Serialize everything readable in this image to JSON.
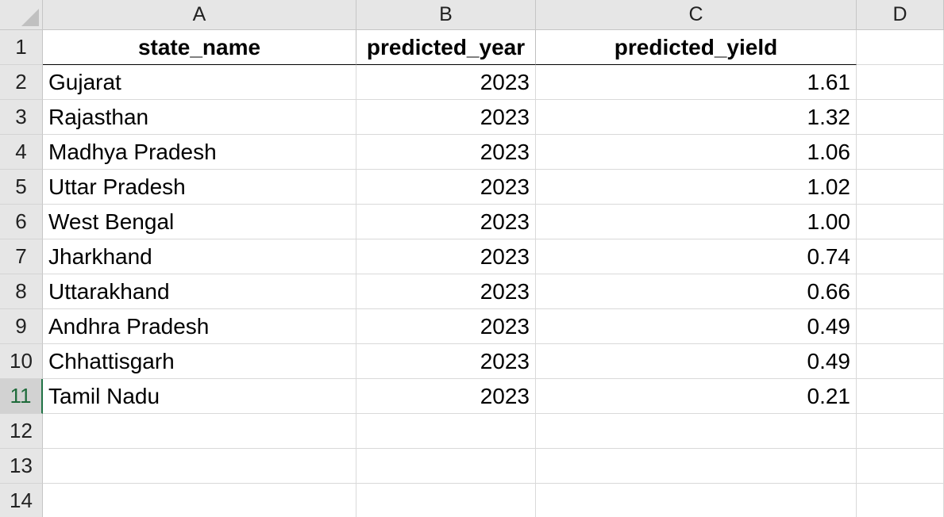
{
  "columns": [
    "A",
    "B",
    "C",
    "D"
  ],
  "header_row": {
    "row_number": "1",
    "cells": [
      "state_name",
      "predicted_year",
      "predicted_yield",
      ""
    ]
  },
  "rows": [
    {
      "n": "2",
      "state": "Gujarat",
      "year": "2023",
      "yield": "1.61"
    },
    {
      "n": "3",
      "state": "Rajasthan",
      "year": "2023",
      "yield": "1.32"
    },
    {
      "n": "4",
      "state": "Madhya Pradesh",
      "year": "2023",
      "yield": "1.06"
    },
    {
      "n": "5",
      "state": "Uttar Pradesh",
      "year": "2023",
      "yield": "1.02"
    },
    {
      "n": "6",
      "state": "West Bengal",
      "year": "2023",
      "yield": "1.00"
    },
    {
      "n": "7",
      "state": "Jharkhand",
      "year": "2023",
      "yield": "0.74"
    },
    {
      "n": "8",
      "state": "Uttarakhand",
      "year": "2023",
      "yield": "0.66"
    },
    {
      "n": "9",
      "state": "Andhra Pradesh",
      "year": "2023",
      "yield": "0.49"
    },
    {
      "n": "10",
      "state": "Chhattisgarh",
      "year": "2023",
      "yield": "0.49"
    },
    {
      "n": "11",
      "state": "Tamil Nadu",
      "year": "2023",
      "yield": "0.21"
    }
  ],
  "empty_rows": [
    "12",
    "13",
    "14"
  ],
  "active_row": "11",
  "colors": {
    "selection_accent": "#217346",
    "header_bg": "#e6e6e6",
    "gridline": "#d9d9d9"
  }
}
